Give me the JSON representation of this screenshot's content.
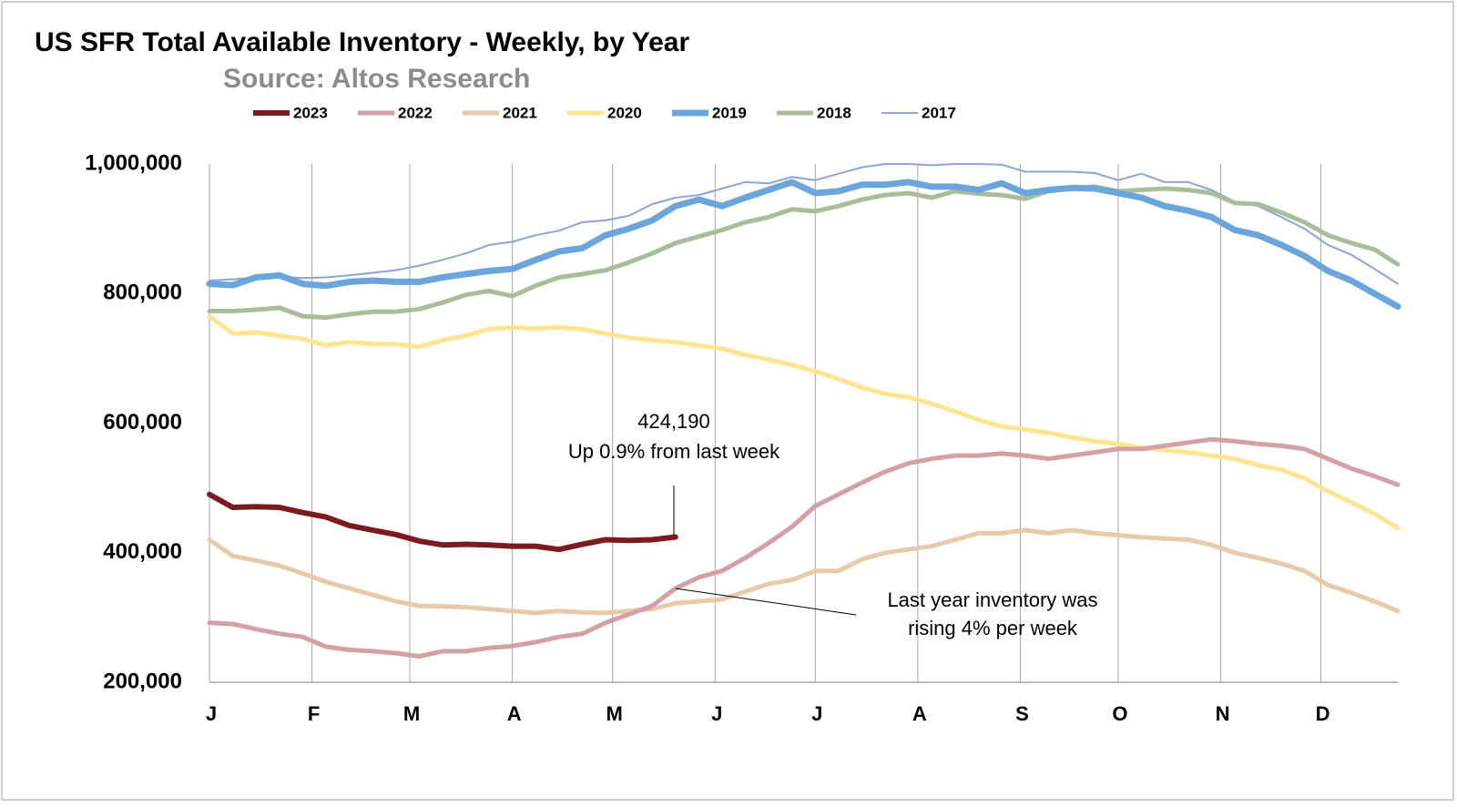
{
  "chart_data": {
    "type": "line",
    "title": "US SFR Total Available Inventory - Weekly, by Year",
    "subtitle": "Source: Altos Research",
    "x": [
      1,
      2,
      3,
      4,
      5,
      6,
      7,
      8,
      9,
      10,
      11,
      12,
      13,
      14,
      15,
      16,
      17,
      18,
      19,
      20,
      21,
      22,
      23,
      24,
      25,
      26,
      27,
      28,
      29,
      30,
      31,
      32,
      33,
      34,
      35,
      36,
      37,
      38,
      39,
      40,
      41,
      42,
      43,
      44,
      45,
      46,
      47,
      48,
      49,
      50,
      51,
      52
    ],
    "xlim": [
      1,
      52
    ],
    "xticks": [
      {
        "value": 1,
        "label": "J"
      },
      {
        "value": 5.4,
        "label": "F"
      },
      {
        "value": 9.6,
        "label": "M"
      },
      {
        "value": 14,
        "label": "A"
      },
      {
        "value": 18.3,
        "label": "M"
      },
      {
        "value": 22.7,
        "label": "J"
      },
      {
        "value": 27,
        "label": "J"
      },
      {
        "value": 31.4,
        "label": "A"
      },
      {
        "value": 35.8,
        "label": "S"
      },
      {
        "value": 40,
        "label": "O"
      },
      {
        "value": 44.4,
        "label": "N"
      },
      {
        "value": 48.7,
        "label": "D"
      }
    ],
    "ylim": [
      200000,
      1000000
    ],
    "yticks": [
      {
        "value": 200000,
        "label": "200,000"
      },
      {
        "value": 400000,
        "label": "400,000"
      },
      {
        "value": 600000,
        "label": "600,000"
      },
      {
        "value": 800000,
        "label": "800,000"
      },
      {
        "value": 1000000,
        "label": "1,000,000"
      }
    ],
    "grid": "x",
    "series": [
      {
        "name": "2023",
        "color": "#7b1a1f",
        "values": [
          490000,
          470000,
          471000,
          470000,
          462000,
          455000,
          442000,
          435000,
          428000,
          418000,
          412000,
          413000,
          412000,
          410000,
          410000,
          405000,
          413000,
          420000,
          419000,
          420000,
          424190,
          null,
          null,
          null,
          null,
          null,
          null,
          null,
          null,
          null,
          null,
          null,
          null,
          null,
          null,
          null,
          null,
          null,
          null,
          null,
          null,
          null,
          null,
          null,
          null,
          null,
          null,
          null,
          null,
          null,
          null,
          null
        ]
      },
      {
        "name": "2022",
        "color": "#d4a0a3",
        "values": [
          292000,
          290000,
          282000,
          275000,
          270000,
          255000,
          250000,
          248000,
          245000,
          240000,
          248000,
          248000,
          253000,
          256000,
          262000,
          270000,
          275000,
          292000,
          305000,
          318000,
          345000,
          362000,
          372000,
          392000,
          415000,
          440000,
          472000,
          490000,
          508000,
          525000,
          538000,
          545000,
          550000,
          550000,
          553000,
          550000,
          545000,
          550000,
          555000,
          560000,
          560000,
          565000,
          570000,
          575000,
          572000,
          568000,
          565000,
          560000,
          545000,
          530000,
          518000,
          505000
        ]
      },
      {
        "name": "2021",
        "color": "#e6cba8",
        "values": [
          420000,
          395000,
          388000,
          380000,
          368000,
          355000,
          345000,
          335000,
          325000,
          318000,
          317000,
          316000,
          313000,
          310000,
          307000,
          310000,
          308000,
          307000,
          310000,
          313000,
          322000,
          325000,
          328000,
          340000,
          352000,
          358000,
          372000,
          372000,
          390000,
          400000,
          405000,
          410000,
          420000,
          430000,
          430000,
          435000,
          430000,
          435000,
          430000,
          427000,
          424000,
          422000,
          420000,
          412000,
          400000,
          392000,
          383000,
          372000,
          350000,
          338000,
          325000,
          310000
        ]
      },
      {
        "name": "2020",
        "color": "#ffe592",
        "values": [
          765000,
          738000,
          740000,
          735000,
          730000,
          720000,
          725000,
          722000,
          722000,
          718000,
          728000,
          735000,
          745000,
          748000,
          746000,
          748000,
          745000,
          738000,
          732000,
          728000,
          725000,
          720000,
          715000,
          705000,
          698000,
          690000,
          680000,
          668000,
          655000,
          645000,
          640000,
          630000,
          618000,
          605000,
          595000,
          590000,
          585000,
          578000,
          572000,
          568000,
          562000,
          558000,
          555000,
          550000,
          545000,
          535000,
          528000,
          515000,
          495000,
          478000,
          460000,
          438000
        ]
      },
      {
        "name": "2019",
        "color": "#6aa6dc",
        "values": [
          815000,
          813000,
          825000,
          828000,
          815000,
          812000,
          818000,
          820000,
          818000,
          818000,
          825000,
          830000,
          835000,
          838000,
          852000,
          865000,
          870000,
          890000,
          900000,
          913000,
          935000,
          945000,
          935000,
          948000,
          960000,
          972000,
          955000,
          958000,
          968000,
          968000,
          972000,
          965000,
          965000,
          960000,
          970000,
          955000,
          960000,
          963000,
          962000,
          955000,
          948000,
          935000,
          928000,
          918000,
          898000,
          890000,
          875000,
          858000,
          835000,
          820000,
          800000,
          780000
        ]
      },
      {
        "name": "2018",
        "color": "#a9bd9b",
        "values": [
          773000,
          773000,
          775000,
          778000,
          765000,
          763000,
          768000,
          772000,
          772000,
          776000,
          786000,
          798000,
          804000,
          796000,
          812000,
          825000,
          830000,
          836000,
          848000,
          862000,
          878000,
          888000,
          898000,
          910000,
          918000,
          930000,
          927000,
          935000,
          945000,
          952000,
          955000,
          948000,
          958000,
          954000,
          952000,
          946000,
          958000,
          962000,
          965000,
          958000,
          960000,
          962000,
          960000,
          955000,
          940000,
          938000,
          925000,
          910000,
          890000,
          878000,
          868000,
          845000
        ]
      },
      {
        "name": "2017",
        "color": "#8ea3d8",
        "values": [
          820000,
          822000,
          825000,
          826000,
          824000,
          825000,
          828000,
          832000,
          836000,
          843000,
          852000,
          862000,
          875000,
          880000,
          890000,
          897000,
          910000,
          913000,
          920000,
          938000,
          948000,
          952000,
          962000,
          972000,
          970000,
          980000,
          975000,
          985000,
          995000,
          1000000,
          1000000,
          998000,
          1000000,
          1000000,
          999000,
          988000,
          988000,
          988000,
          986000,
          975000,
          985000,
          972000,
          972000,
          960000,
          942000,
          935000,
          918000,
          900000,
          875000,
          860000,
          838000,
          815000
        ]
      }
    ],
    "annotations": [
      "424,190",
      "Up 0.9% from last week",
      "Last year inventory was",
      "rising 4% per week"
    ]
  }
}
